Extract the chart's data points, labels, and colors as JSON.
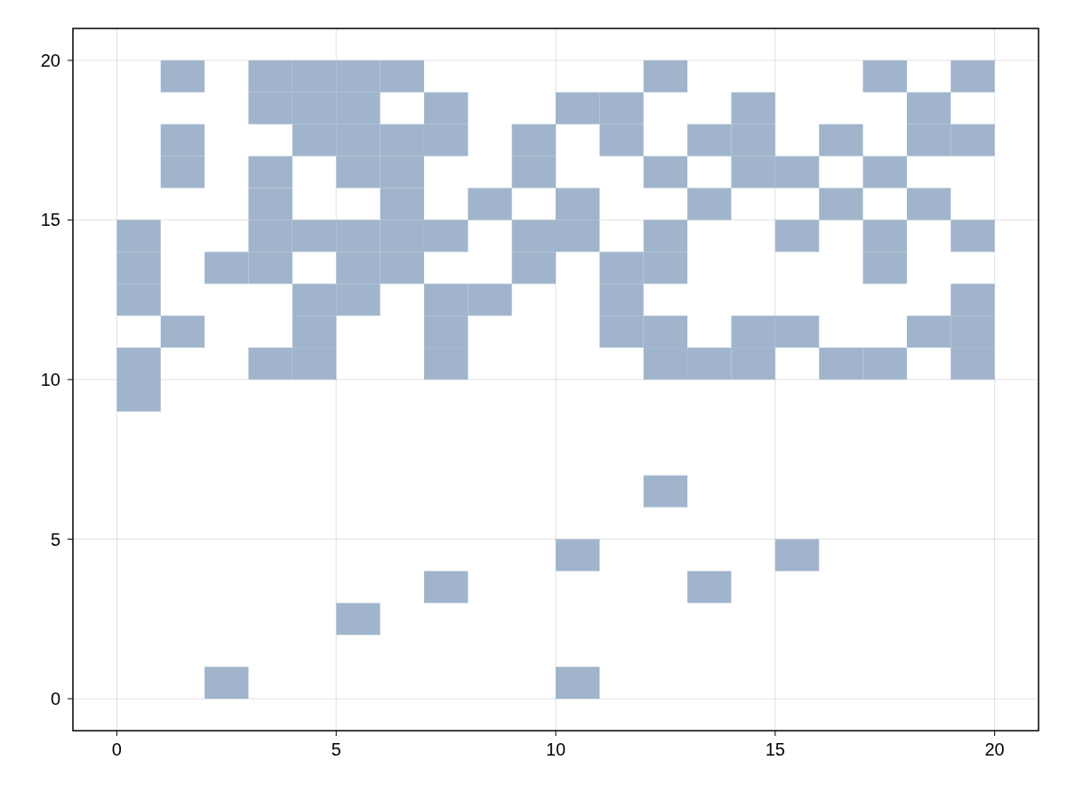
{
  "chart_data": {
    "type": "bar",
    "grid": true,
    "xlim": [
      -1,
      21
    ],
    "xticks": [
      0,
      5,
      10,
      15,
      20
    ],
    "ylim": [
      -1,
      21
    ],
    "yticks": [
      0,
      5,
      10,
      15,
      20
    ],
    "x": [
      0.5,
      1.5,
      2.5,
      3.5,
      4.5,
      5.5,
      6.5,
      7.5,
      8.5,
      9.5,
      10.5,
      11.5,
      12.5,
      13.5,
      14.5,
      15.5,
      16.5,
      17.5,
      18.5,
      19.5
    ],
    "series": [
      {
        "color": "#a0b5cc",
        "base": [
          9,
          11,
          0,
          10,
          10,
          2,
          13,
          3,
          12,
          13,
          0,
          11,
          6,
          3,
          10,
          4,
          10,
          10,
          11,
          10
        ],
        "values": [
          1,
          1,
          1,
          1,
          1,
          1,
          1,
          1,
          1,
          1,
          1,
          1,
          1,
          1,
          1,
          1,
          1,
          1,
          1,
          1
        ]
      },
      {
        "color": "#a0b5cc",
        "base": [
          10,
          16,
          13,
          13,
          11,
          12,
          14,
          10,
          15,
          14,
          4,
          12,
          10,
          10,
          11,
          11,
          15,
          13,
          15,
          11
        ],
        "values": [
          1,
          1,
          1,
          1,
          1,
          1,
          1,
          1,
          1,
          1,
          1,
          1,
          1,
          1,
          1,
          1,
          1,
          1,
          1,
          1
        ]
      },
      {
        "color": "#a0b5cc",
        "base": [
          12,
          17,
          null,
          14,
          12,
          13,
          15,
          11,
          null,
          16,
          14,
          13,
          11,
          15,
          16,
          14,
          17,
          14,
          17,
          12
        ],
        "values": [
          1,
          1,
          null,
          1,
          1,
          1,
          1,
          1,
          null,
          1,
          1,
          1,
          1,
          1,
          1,
          1,
          1,
          1,
          1,
          1
        ]
      },
      {
        "color": "#a0b5cc",
        "base": [
          13,
          19,
          null,
          15,
          14,
          14,
          16,
          12,
          null,
          17,
          15,
          17,
          13,
          17,
          17,
          16,
          null,
          16,
          18,
          14
        ],
        "values": [
          1,
          1,
          null,
          1,
          1,
          1,
          1,
          1,
          null,
          1,
          1,
          1,
          1,
          1,
          1,
          1,
          null,
          1,
          1,
          1
        ]
      },
      {
        "color": "#a0b5cc",
        "base": [
          14,
          null,
          null,
          16,
          17,
          16,
          17,
          14,
          null,
          null,
          18,
          18,
          14,
          null,
          18,
          null,
          null,
          19,
          null,
          17
        ],
        "values": [
          1,
          null,
          null,
          1,
          1,
          1,
          1,
          1,
          null,
          null,
          1,
          1,
          1,
          null,
          1,
          null,
          null,
          1,
          null,
          1
        ]
      },
      {
        "color": "#a0b5cc",
        "base": [
          null,
          null,
          null,
          18,
          18,
          17,
          19,
          17,
          null,
          null,
          null,
          null,
          16,
          null,
          null,
          null,
          null,
          null,
          null,
          19
        ],
        "values": [
          null,
          null,
          null,
          1,
          1,
          1,
          1,
          1,
          null,
          null,
          null,
          null,
          1,
          null,
          null,
          null,
          null,
          null,
          null,
          1
        ]
      },
      {
        "color": "#a0b5cc",
        "base": [
          null,
          null,
          null,
          19,
          19,
          18,
          null,
          18,
          null,
          null,
          null,
          null,
          19,
          null,
          null,
          null,
          null,
          null,
          null,
          null
        ],
        "values": [
          null,
          null,
          null,
          1,
          1,
          1,
          null,
          1,
          null,
          null,
          null,
          null,
          1,
          null,
          null,
          null,
          null,
          null,
          null,
          null
        ]
      },
      {
        "color": "#a0b5cc",
        "base": [
          null,
          null,
          null,
          null,
          null,
          19,
          null,
          null,
          null,
          null,
          null,
          null,
          null,
          null,
          null,
          null,
          null,
          null,
          null,
          null
        ],
        "values": [
          null,
          null,
          null,
          null,
          null,
          1,
          null,
          null,
          null,
          null,
          null,
          null,
          null,
          null,
          null,
          null,
          null,
          null,
          null,
          null
        ]
      }
    ]
  }
}
